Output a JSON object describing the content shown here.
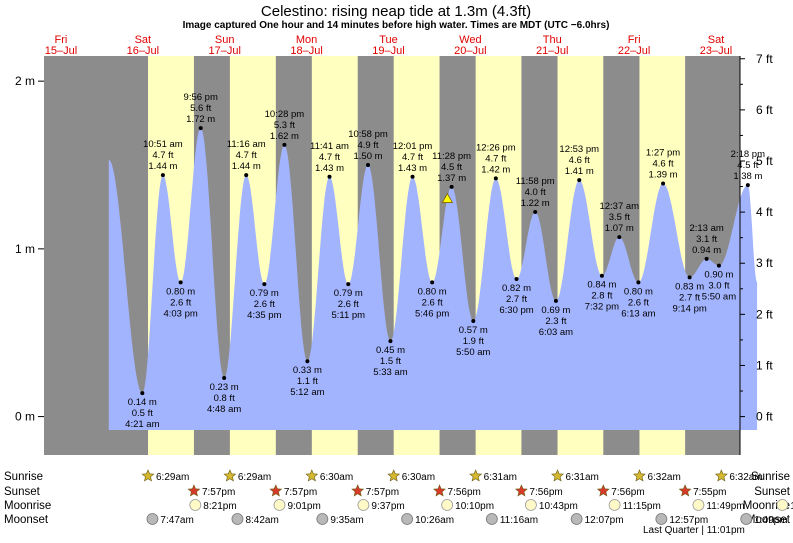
{
  "header": {
    "title": "Celestino: rising  neap tide at 1.3m (4.3ft)",
    "subtitle": "Image captured One hour and 14 minutes before high water. Times are MDT (UTC −6.0hrs)"
  },
  "colors": {
    "night": "#8c8c8c",
    "day": "#ffffc0",
    "water": "#a3b4ff",
    "day_label": "#e00000",
    "star": "#d4b830",
    "sunset_star": "#d83a2a",
    "moonrise": "#fff9c8",
    "moonset": "#b8b8b8"
  },
  "chart_data": {
    "type": "area",
    "title": "Celestino: rising  neap tide at 1.3m (4.3ft)",
    "left_axis": {
      "unit": "m",
      "ticks": [
        {
          "v": 0,
          "label": "0 m"
        },
        {
          "v": 1,
          "label": "1 m"
        },
        {
          "v": 2,
          "label": "2 m"
        }
      ]
    },
    "right_axis": {
      "unit": "ft",
      "ticks": [
        {
          "v": 0,
          "label": "0 ft"
        },
        {
          "v": 1,
          "label": "1 ft"
        },
        {
          "v": 2,
          "label": "2 ft"
        },
        {
          "v": 3,
          "label": "3 ft"
        },
        {
          "v": 4,
          "label": "4 ft"
        },
        {
          "v": 5,
          "label": "5 ft"
        },
        {
          "v": 6,
          "label": "6 ft"
        },
        {
          "v": 7,
          "label": "7 ft"
        }
      ]
    },
    "ylim_m": [
      -0.08,
      2.15
    ],
    "x_unit": "hours since Fri 15-Jul 00:00",
    "xlim_hours": [
      0,
      204
    ],
    "days": [
      {
        "dow": "Fri",
        "date": "15–Jul"
      },
      {
        "dow": "Sat",
        "date": "16–Jul"
      },
      {
        "dow": "Sun",
        "date": "17–Jul"
      },
      {
        "dow": "Mon",
        "date": "18–Jul"
      },
      {
        "dow": "Tue",
        "date": "19–Jul"
      },
      {
        "dow": "Wed",
        "date": "20–Jul"
      },
      {
        "dow": "Thu",
        "date": "21–Jul"
      },
      {
        "dow": "Fri",
        "date": "22–Jul"
      },
      {
        "dow": "Sat",
        "date": "23–Jul"
      }
    ],
    "sun": [
      {
        "sunrise": "6:29am",
        "sunset": "7:57pm"
      },
      {
        "sunrise": "6:29am",
        "sunset": "7:57pm"
      },
      {
        "sunrise": "6:30am",
        "sunset": "7:57pm"
      },
      {
        "sunrise": "6:30am",
        "sunset": "7:56pm"
      },
      {
        "sunrise": "6:31am",
        "sunset": "7:56pm"
      },
      {
        "sunrise": "6:31am",
        "sunset": "7:56pm"
      },
      {
        "sunrise": "6:32am",
        "sunset": "7:55pm"
      },
      {
        "sunrise": "6:32am",
        "sunset": ""
      }
    ],
    "moon": {
      "moonrise": [
        "8:21pm",
        "9:01pm",
        "9:37pm",
        "10:10pm",
        "10:43pm",
        "11:15pm",
        "11:49pm",
        "12:25am"
      ],
      "moonset": [
        "7:47am",
        "8:42am",
        "9:35am",
        "10:26am",
        "11:16am",
        "12:07pm",
        "12:57pm",
        "1:49pm"
      ],
      "phase_note": "Last Quarter | 11:01pm"
    },
    "series": [
      {
        "name": "tide",
        "points": [
          {
            "t": 28.82,
            "m": 0.14,
            "ft": "0.5 ft",
            "time": "4:21 am",
            "type": "low"
          },
          {
            "t": 34.85,
            "m": 1.44,
            "ft": "4.7 ft",
            "time": "10:51 am",
            "type": "high"
          },
          {
            "t": 40.05,
            "m": 0.8,
            "ft": "2.6 ft",
            "time": "4:03 pm",
            "type": "low"
          },
          {
            "t": 45.93,
            "m": 1.72,
            "ft": "5.6 ft",
            "time": "9:56 pm",
            "type": "high"
          },
          {
            "t": 52.8,
            "m": 0.23,
            "ft": "0.8 ft",
            "time": "4:48 am",
            "type": "low"
          },
          {
            "t": 59.27,
            "m": 1.44,
            "ft": "4.7 ft",
            "time": "11:16 am",
            "type": "high"
          },
          {
            "t": 64.58,
            "m": 0.79,
            "ft": "2.6 ft",
            "time": "4:35 pm",
            "type": "low"
          },
          {
            "t": 70.47,
            "m": 1.62,
            "ft": "5.3 ft",
            "time": "10:28 pm",
            "type": "high"
          },
          {
            "t": 77.2,
            "m": 0.33,
            "ft": "1.1 ft",
            "time": "5:12 am",
            "type": "low"
          },
          {
            "t": 83.68,
            "m": 1.43,
            "ft": "4.7 ft",
            "time": "11:41 am",
            "type": "high"
          },
          {
            "t": 89.18,
            "m": 0.79,
            "ft": "2.6 ft",
            "time": "5:11 pm",
            "type": "low"
          },
          {
            "t": 94.97,
            "m": 1.5,
            "ft": "4.9 ft",
            "time": "10:58 pm",
            "type": "high"
          },
          {
            "t": 101.55,
            "m": 0.45,
            "ft": "1.5 ft",
            "time": "5:33 am",
            "type": "low"
          },
          {
            "t": 108.02,
            "m": 1.43,
            "ft": "4.7 ft",
            "time": "12:01 pm",
            "type": "high"
          },
          {
            "t": 113.77,
            "m": 0.8,
            "ft": "2.6 ft",
            "time": "5:46 pm",
            "type": "low"
          },
          {
            "t": 119.47,
            "m": 1.37,
            "ft": "4.5 ft",
            "time": "11:28 pm",
            "type": "high"
          },
          {
            "t": 125.83,
            "m": 0.57,
            "ft": "1.9 ft",
            "time": "5:50 am",
            "type": "low"
          },
          {
            "t": 132.43,
            "m": 1.42,
            "ft": "4.7 ft",
            "time": "12:26 pm",
            "type": "high"
          },
          {
            "t": 138.5,
            "m": 0.82,
            "ft": "2.7 ft",
            "time": "6:30 pm",
            "type": "low"
          },
          {
            "t": 143.97,
            "m": 1.22,
            "ft": "4.0 ft",
            "time": "11:58 pm",
            "type": "high"
          },
          {
            "t": 150.05,
            "m": 0.69,
            "ft": "2.3 ft",
            "time": "6:03 am",
            "type": "low"
          },
          {
            "t": 156.88,
            "m": 1.41,
            "ft": "4.6 ft",
            "time": "12:53 pm",
            "type": "high"
          },
          {
            "t": 163.53,
            "m": 0.84,
            "ft": "2.8 ft",
            "time": "7:32 pm",
            "type": "low"
          },
          {
            "t": 168.62,
            "m": 1.07,
            "ft": "3.5 ft",
            "time": "12:37 am",
            "type": "high"
          },
          {
            "t": 174.22,
            "m": 0.8,
            "ft": "2.6 ft",
            "time": "6:13 am",
            "type": "low"
          },
          {
            "t": 181.45,
            "m": 1.39,
            "ft": "4.6 ft",
            "time": "1:27 pm",
            "type": "high"
          },
          {
            "t": 189.23,
            "m": 0.83,
            "ft": "2.7 ft",
            "time": "9:14 pm",
            "type": "low"
          },
          {
            "t": 194.22,
            "m": 0.94,
            "ft": "3.1 ft",
            "time": "2:13 am",
            "type": "high"
          },
          {
            "t": 197.83,
            "m": 0.9,
            "ft": "3.0 ft",
            "time": "5:50 am",
            "type": "low"
          },
          {
            "t": 206.3,
            "m": 1.38,
            "ft": "4.5 ft",
            "time": "2:18 pm",
            "type": "high"
          }
        ]
      }
    ],
    "current": {
      "t": 118.23,
      "m": 1.3
    }
  }
}
